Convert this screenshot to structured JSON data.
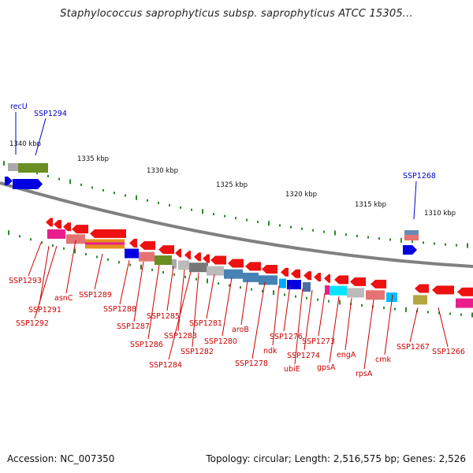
{
  "header": {
    "title": "Staphylococcus saprophyticus subsp. saprophyticus ATCC 15305..."
  },
  "footer": {
    "accession": "Accession: NC_007350",
    "topology": "Topology: circular; Length: 2,516,575 bp; Genes: 2,526"
  },
  "colors": {
    "forward": "#0000e0",
    "reverse": "#ee1111",
    "label_forward": "#0000cc",
    "label_reverse": "#cc0000",
    "backbone": "#888888",
    "ticks": "#2a8a2a"
  },
  "scale_labels": [
    "1340 kbp",
    "1335 kbp",
    "1330 kbp",
    "1325 kbp",
    "1320 kbp",
    "1315 kbp",
    "1310 kbp"
  ],
  "forward_labels": [
    "recU",
    "SSP1294",
    "SSP1268"
  ],
  "reverse_labels": [
    "SSP1293",
    "SSP1291",
    "SSP1292",
    "asnC",
    "SSP1289",
    "SSP1288",
    "SSP1287",
    "SSP1286",
    "SSP1285",
    "SSP1283",
    "SSP1284",
    "SSP1282",
    "SSP1281",
    "SSP1280",
    "aroB",
    "SSP1278",
    "ndk",
    "SSP1276",
    "ubiE",
    "SSP1274",
    "SSP1273",
    "gpsA",
    "engA",
    "rpsA",
    "cmk",
    "SSP1267",
    "SSP1266"
  ]
}
